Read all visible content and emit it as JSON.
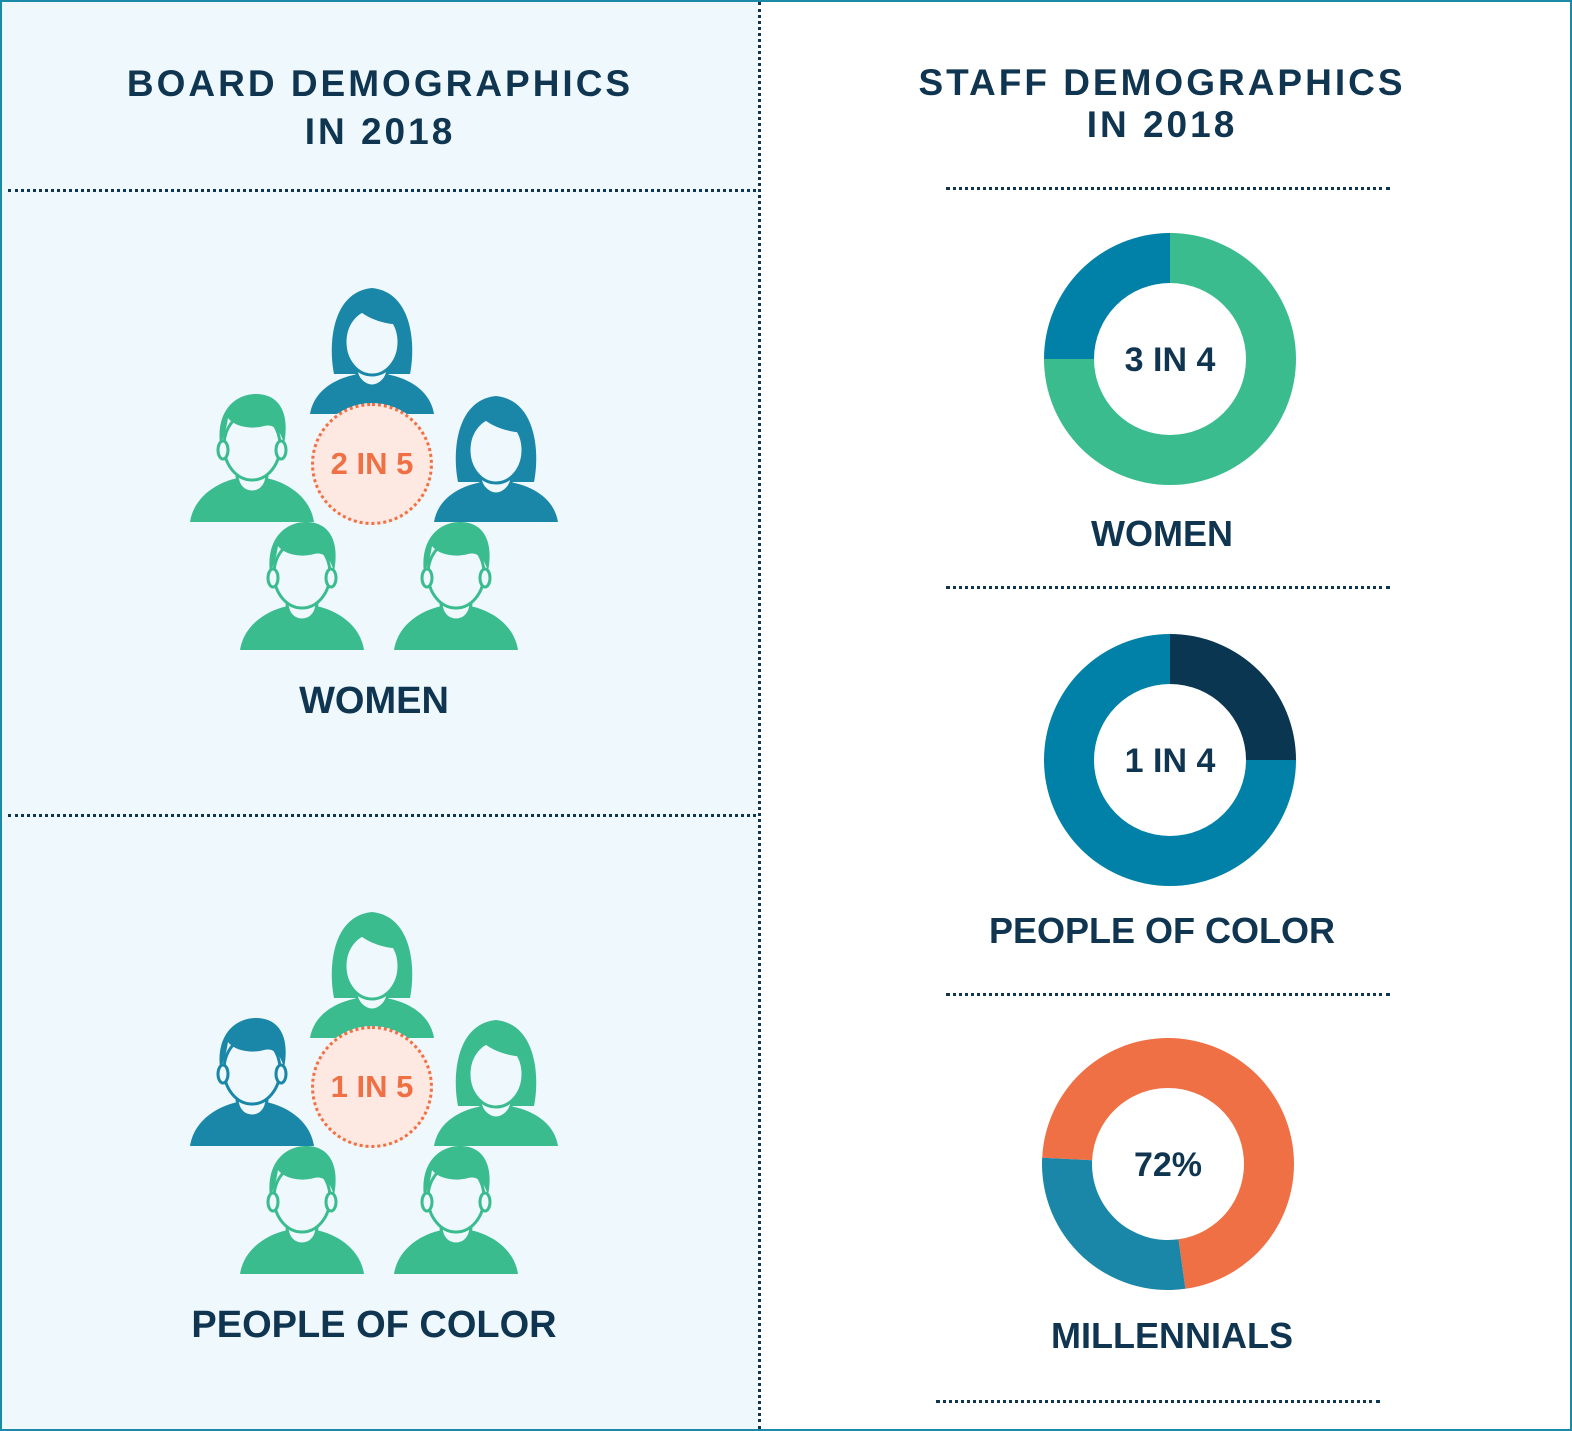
{
  "colors": {
    "navy": "#0f3550",
    "teal_blue": "#1a87a8",
    "green": "#3bbc8f",
    "orange": "#f07045",
    "panel_bg": "#eef8fd"
  },
  "board": {
    "title": "BOARD DEMOGRAPHICS IN 2018",
    "women": {
      "ratio": "2 IN 5",
      "label": "WOMEN",
      "people": [
        {
          "icon": "female-person-icon",
          "color": "#1a87a8"
        },
        {
          "icon": "male-person-icon",
          "color": "#3bbc8f"
        },
        {
          "icon": "female-person-icon",
          "color": "#1a87a8"
        },
        {
          "icon": "male-person-icon",
          "color": "#3bbc8f"
        },
        {
          "icon": "male-person-icon",
          "color": "#3bbc8f"
        }
      ]
    },
    "poc": {
      "ratio": "1 IN 5",
      "label": "PEOPLE OF COLOR",
      "people": [
        {
          "icon": "female-person-icon",
          "color": "#3bbc8f"
        },
        {
          "icon": "male-person-icon",
          "color": "#1a87a8"
        },
        {
          "icon": "female-person-icon",
          "color": "#3bbc8f"
        },
        {
          "icon": "male-person-icon",
          "color": "#3bbc8f"
        },
        {
          "icon": "male-person-icon",
          "color": "#3bbc8f"
        }
      ]
    }
  },
  "staff": {
    "title": "STAFF DEMOGRAPHICS IN 2018"
  },
  "chart_data": [
    {
      "type": "pie",
      "label": "WOMEN",
      "center_text": "3 IN 4",
      "values": [
        0.75,
        0.25
      ],
      "colors": [
        "#3bbc8f",
        "#0181a8"
      ]
    },
    {
      "type": "pie",
      "label": "PEOPLE OF COLOR",
      "center_text": "1 IN 4",
      "values": [
        0.25,
        0.75
      ],
      "colors": [
        "#0a3652",
        "#0181a8"
      ]
    },
    {
      "type": "pie",
      "label": "MILLENNIALS",
      "center_text": "72%",
      "values": [
        0.72,
        0.28
      ],
      "colors": [
        "#f07045",
        "#1a87a8"
      ]
    }
  ]
}
